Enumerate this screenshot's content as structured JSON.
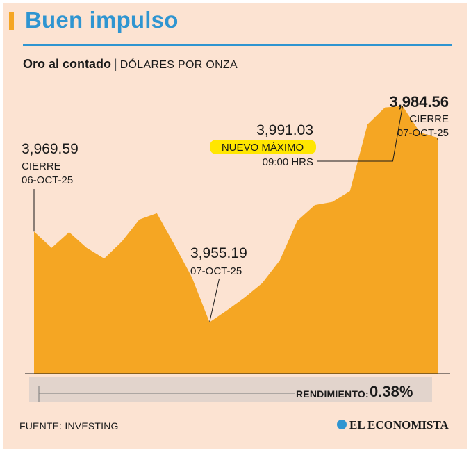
{
  "header": {
    "title": "Buen impulso",
    "subtitle_main": "Oro al contado",
    "subtitle_separator": "|",
    "subtitle_unit": "DÓLARES POR ONZA"
  },
  "colors": {
    "area": "#f5a623",
    "background": "#fce3d2",
    "accent": "#2f95d1",
    "highlight": "#ffe600"
  },
  "chart_data": {
    "type": "area",
    "title": "Oro al contado",
    "ylabel": "DÓLARES POR ONZA",
    "xlabel": "",
    "ylim": [
      3947,
      3994
    ],
    "grid": false,
    "series": [
      {
        "values": [
          3969.59,
          3967.0,
          3969.5,
          3967.0,
          3965.3,
          3968.0,
          3971.5,
          3972.5,
          3967.5,
          3962.3,
          3955.19,
          3957.1,
          3959.1,
          3961.4,
          3965.0,
          3971.3,
          3973.8,
          3974.3,
          3976.0,
          3986.6,
          3989.3,
          3989.5,
          3985.3,
          3984.5
        ]
      }
    ],
    "annotations": [
      {
        "value": "3,969.59",
        "lines": [
          "CIERRE",
          "06-OCT-25"
        ]
      },
      {
        "value": "3,955.19",
        "lines": [
          "07-OCT-25"
        ]
      },
      {
        "value": "3,991.03",
        "highlight": "NUEVO MÁXIMO",
        "lines": [
          "09:00 HRS"
        ]
      },
      {
        "value": "3,984.56",
        "lines": [
          "CIERRE",
          "07-OCT-25"
        ]
      }
    ]
  },
  "rendimiento": {
    "label": "RENDIMIENTO:",
    "value": "0.38%"
  },
  "footer": {
    "source": "FUENTE: INVESTING",
    "brand": "EL ECONOMISTA"
  }
}
